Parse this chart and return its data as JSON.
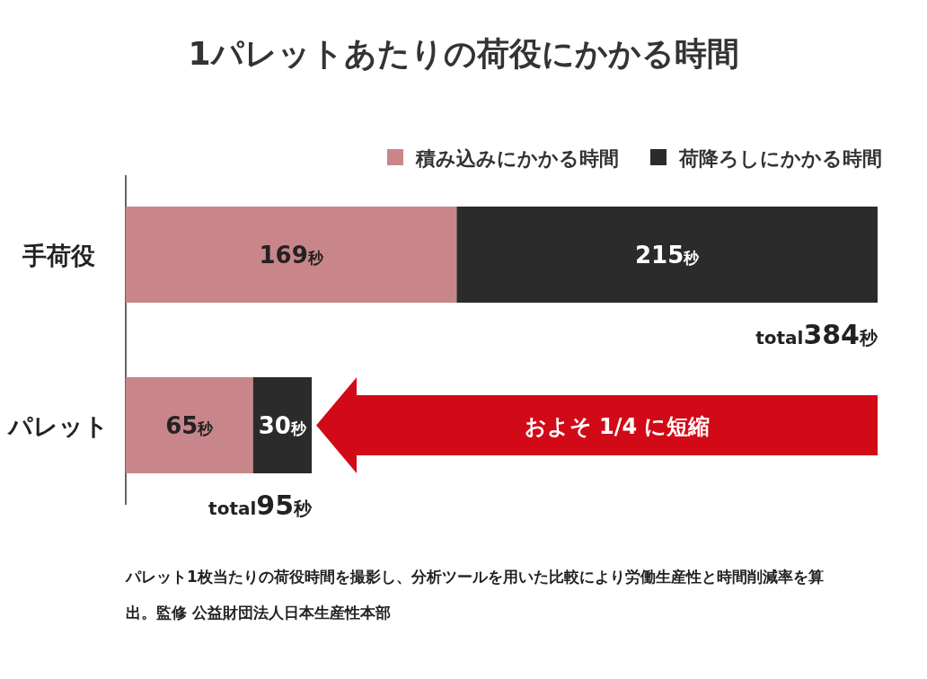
{
  "chart_data": {
    "type": "bar",
    "orientation": "horizontal",
    "stacked": true,
    "title": "1パレットあたりの荷役にかかる時間",
    "categories": [
      "手荷役",
      "パレット"
    ],
    "series": [
      {
        "name": "積み込みにかかる時間",
        "color": "#c9868a",
        "values": [
          169,
          65
        ],
        "value_labels": [
          "169秒",
          "65秒"
        ]
      },
      {
        "name": "荷降ろしにかかる時間",
        "color": "#2b2b2b",
        "values": [
          215,
          30
        ],
        "value_labels": [
          "215秒",
          "30秒"
        ]
      }
    ],
    "totals": [
      "total384秒",
      "total95秒"
    ],
    "legend": "top right",
    "annotations": [
      "およそ 1/4 に短縮",
      "パレット1枚当たりの荷役時間を撮影し、分析ツールを用いた比較により労働生産性と時間削減率を算出。監修 公益財団法人日本生産性本部"
    ]
  }
}
